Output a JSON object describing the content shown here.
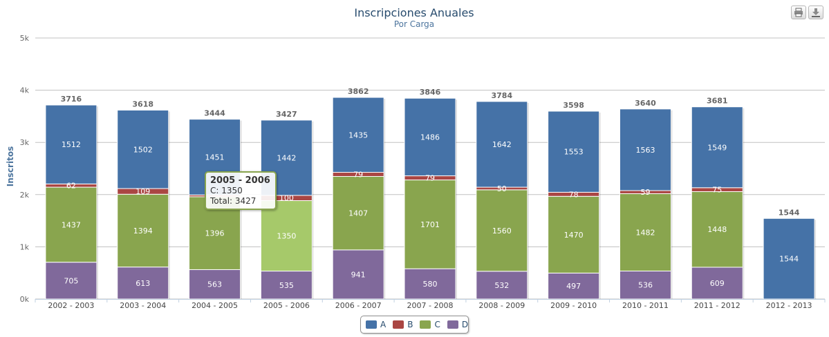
{
  "chart_data": {
    "type": "bar",
    "stacked": true,
    "title": "Inscripciones Anuales",
    "subtitle": "Por Carga",
    "xlabel": "",
    "ylabel": "Inscritos",
    "ylim": [
      0,
      5000
    ],
    "yticks": [
      "0k",
      "1k",
      "2k",
      "3k",
      "4k",
      "5k"
    ],
    "grid": true,
    "legend_position": "bottom-center",
    "categories": [
      "2002 - 2003",
      "2003 - 2004",
      "2004 - 2005",
      "2005 - 2006",
      "2006 - 2007",
      "2007 - 2008",
      "2008 - 2009",
      "2009 - 2010",
      "2010 - 2011",
      "2011 - 2012",
      "2012 - 2013"
    ],
    "series": [
      {
        "name": "A",
        "color": "#4572A7",
        "values": [
          1512,
          1502,
          1451,
          1442,
          1435,
          1486,
          1642,
          1553,
          1563,
          1549,
          1544
        ]
      },
      {
        "name": "B",
        "color": "#AA4643",
        "values": [
          62,
          109,
          34,
          100,
          79,
          79,
          50,
          78,
          59,
          75,
          0
        ]
      },
      {
        "name": "C",
        "color": "#89A54E",
        "values": [
          1437,
          1394,
          1396,
          1350,
          1407,
          1701,
          1560,
          1470,
          1482,
          1448,
          0
        ]
      },
      {
        "name": "D",
        "color": "#80699B",
        "values": [
          705,
          613,
          563,
          535,
          941,
          580,
          532,
          497,
          536,
          609,
          0
        ]
      }
    ],
    "totals": [
      3716,
      3618,
      3444,
      3427,
      3862,
      3846,
      3784,
      3598,
      3640,
      3681,
      1544
    ],
    "hidden_labels": [
      [
        2,
        1
      ]
    ],
    "highlighted": {
      "category_index": 3,
      "series_index": 2,
      "color": "#A6C96A"
    }
  },
  "tooltip": {
    "title": "2005 - 2006",
    "line1": "C: 1350",
    "line2": "Total: 3427"
  },
  "legend": [
    {
      "label": "A",
      "color": "#4572A7"
    },
    {
      "label": "B",
      "color": "#AA4643"
    },
    {
      "label": "C",
      "color": "#89A54E"
    },
    {
      "label": "D",
      "color": "#80699B"
    }
  ],
  "export": {
    "print_icon": "print-icon",
    "download_icon": "download-icon"
  }
}
